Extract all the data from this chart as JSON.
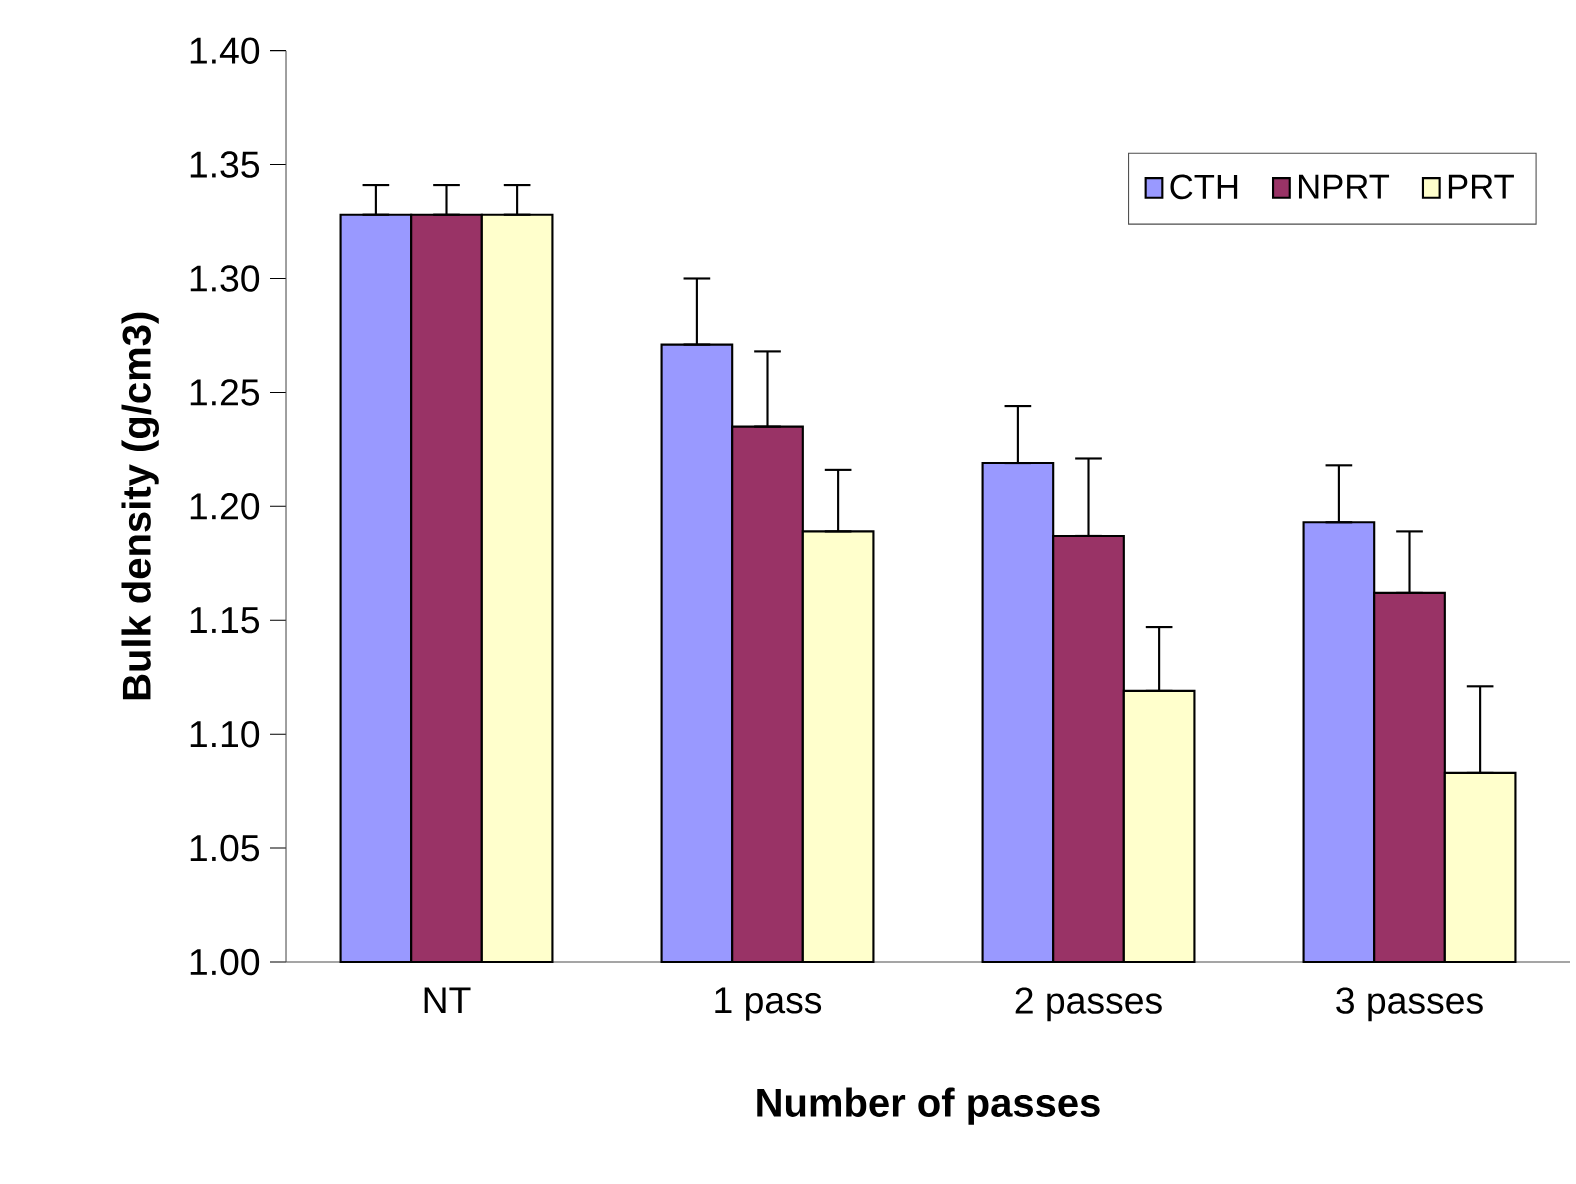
{
  "chart_data": {
    "type": "bar",
    "xlabel": "Number of passes",
    "ylabel": "Bulk density (g/cm3)",
    "categories": [
      "NT",
      "1 pass",
      "2 passes",
      "3 passes"
    ],
    "series": [
      {
        "name": "CTH",
        "color": "#9999ff",
        "values": [
          1.328,
          1.271,
          1.219,
          1.193
        ],
        "errors": [
          [
            1.328,
            1.341
          ],
          [
            1.271,
            1.3
          ],
          [
            1.219,
            1.244
          ],
          [
            1.193,
            1.218
          ]
        ]
      },
      {
        "name": "NPRT",
        "color": "#993366",
        "values": [
          1.328,
          1.235,
          1.187,
          1.162
        ],
        "errors": [
          [
            1.328,
            1.341
          ],
          [
            1.235,
            1.268
          ],
          [
            1.187,
            1.221
          ],
          [
            1.162,
            1.189
          ]
        ]
      },
      {
        "name": "PRT",
        "color": "#ffffcc",
        "values": [
          1.328,
          1.189,
          1.119,
          1.083
        ],
        "errors": [
          [
            1.328,
            1.341
          ],
          [
            1.189,
            1.216
          ],
          [
            1.119,
            1.147
          ],
          [
            1.083,
            1.121
          ]
        ]
      }
    ],
    "ylim": [
      1.0,
      1.4
    ],
    "yticks": [
      {
        "value": 1.0,
        "label": "1.00"
      },
      {
        "value": 1.05,
        "label": "1.05"
      },
      {
        "value": 1.1,
        "label": "1.10"
      },
      {
        "value": 1.15,
        "label": "1.15"
      },
      {
        "value": 1.2,
        "label": "1.20"
      },
      {
        "value": 1.25,
        "label": "1.25"
      },
      {
        "value": 1.3,
        "label": "1.30"
      },
      {
        "value": 1.35,
        "label": "1.35"
      },
      {
        "value": 1.4,
        "label": "1.40"
      }
    ],
    "grid": false,
    "legend": "top right"
  }
}
